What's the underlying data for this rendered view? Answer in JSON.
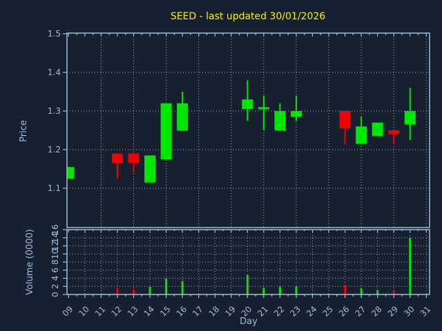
{
  "window": {
    "title": "SEED - last updated 30/01/2026"
  },
  "colors": {
    "background": "#16202e",
    "up_candle": "#00e600",
    "down_candle": "#f20000",
    "spine": "#a3bed9",
    "grid": "#bcc2ca",
    "tick_text": "#9cbdde",
    "title_text": "#f2f200"
  },
  "chart_data": [
    {
      "type": "candlestick",
      "title": "SEED - last updated 30/01/2026",
      "xlabel": "Day",
      "ylabel": "Price",
      "ylim": [
        1.0,
        1.5
      ],
      "yticks": [
        "1.1",
        "1.2",
        "1.3",
        "1.4",
        "1.5"
      ],
      "xlim": [
        8.9,
        31.2
      ],
      "x_tick_labels": [
        "09",
        "10",
        "11",
        "12",
        "13",
        "14",
        "15",
        "16",
        "17",
        "18",
        "19",
        "20",
        "21",
        "22",
        "23",
        "24",
        "25",
        "26",
        "27",
        "28",
        "29",
        "30",
        "31"
      ],
      "grid": "x dashed every 2 days (odd days), y dashed every 0.1",
      "legend": "none",
      "ohlc": [
        {
          "day": 9,
          "open": 1.125,
          "high": 1.155,
          "low": 1.125,
          "close": 1.155
        },
        {
          "day": 12,
          "open": 1.19,
          "high": 1.19,
          "low": 1.125,
          "close": 1.165
        },
        {
          "day": 13,
          "open": 1.19,
          "high": 1.19,
          "low": 1.14,
          "close": 1.165
        },
        {
          "day": 14,
          "open": 1.115,
          "high": 1.185,
          "low": 1.115,
          "close": 1.185
        },
        {
          "day": 15,
          "open": 1.175,
          "high": 1.32,
          "low": 1.175,
          "close": 1.32
        },
        {
          "day": 16,
          "open": 1.25,
          "high": 1.35,
          "low": 1.25,
          "close": 1.32
        },
        {
          "day": 20,
          "open": 1.305,
          "high": 1.38,
          "low": 1.275,
          "close": 1.33
        },
        {
          "day": 21,
          "open": 1.31,
          "high": 1.34,
          "low": 1.25,
          "close": 1.31
        },
        {
          "day": 22,
          "open": 1.25,
          "high": 1.32,
          "low": 1.25,
          "close": 1.3
        },
        {
          "day": 23,
          "open": 1.285,
          "high": 1.34,
          "low": 1.275,
          "close": 1.3
        },
        {
          "day": 26,
          "open": 1.3,
          "high": 1.3,
          "low": 1.215,
          "close": 1.255
        },
        {
          "day": 27,
          "open": 1.215,
          "high": 1.285,
          "low": 1.215,
          "close": 1.26
        },
        {
          "day": 28,
          "open": 1.235,
          "high": 1.27,
          "low": 1.235,
          "close": 1.27
        },
        {
          "day": 29,
          "open": 1.25,
          "high": 1.25,
          "low": 1.215,
          "close": 1.24
        },
        {
          "day": 30,
          "open": 1.265,
          "high": 1.36,
          "low": 1.225,
          "close": 1.3
        }
      ]
    },
    {
      "type": "bar",
      "ylabel": "Volume (0000)",
      "ylim": [
        0,
        16
      ],
      "yticks": [
        "0",
        "2",
        "4",
        "6",
        "8",
        "10",
        "12",
        "14",
        "16"
      ],
      "grid": "x dashed every day, y dashed every 2 units",
      "bars": [
        {
          "day": 12,
          "value": 1.6,
          "direction": "down"
        },
        {
          "day": 13,
          "value": 1.2,
          "direction": "down"
        },
        {
          "day": 14,
          "value": 1.9,
          "direction": "up"
        },
        {
          "day": 15,
          "value": 3.9,
          "direction": "up"
        },
        {
          "day": 16,
          "value": 3.3,
          "direction": "up"
        },
        {
          "day": 20,
          "value": 4.8,
          "direction": "up"
        },
        {
          "day": 21,
          "value": 1.6,
          "direction": "up"
        },
        {
          "day": 22,
          "value": 1.9,
          "direction": "up"
        },
        {
          "day": 23,
          "value": 2.0,
          "direction": "up"
        },
        {
          "day": 26,
          "value": 2.3,
          "direction": "down"
        },
        {
          "day": 27,
          "value": 1.5,
          "direction": "up"
        },
        {
          "day": 28,
          "value": 1.1,
          "direction": "up"
        },
        {
          "day": 29,
          "value": 1.1,
          "direction": "down"
        },
        {
          "day": 30,
          "value": 14.0,
          "direction": "up"
        }
      ]
    }
  ]
}
